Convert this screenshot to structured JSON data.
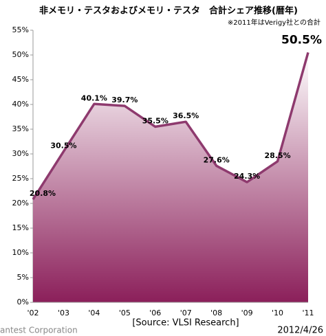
{
  "chart_data": {
    "type": "area",
    "title": "非メモリ・テスタおよびメモリ・テスタ　合計シェア推移(暦年)",
    "annotation": "※2011年はVerigy社との合計",
    "source": "[Source: VLSI Research]",
    "date": "2012/4/26",
    "footer": "antest Corporation",
    "categories": [
      "'02",
      "'03",
      "'04",
      "'05",
      "'06",
      "'07",
      "'08",
      "'09",
      "'10",
      "'11"
    ],
    "values": [
      20.8,
      30.5,
      40.1,
      39.7,
      35.5,
      36.5,
      27.6,
      24.3,
      28.5,
      50.5
    ],
    "value_labels": [
      "20.8%",
      "30.5%",
      "40.1%",
      "39.7%",
      "35.5%",
      "36.5%",
      "27.6%",
      "24.3%",
      "28.5%",
      "50.5%"
    ],
    "color": "#8e3a6e",
    "label_color": "#e8242b",
    "ylim": [
      0,
      55
    ],
    "yticks": [
      {
        "value": 0,
        "label": "0%"
      },
      {
        "value": 5,
        "label": "5%"
      },
      {
        "value": 10,
        "label": "10%"
      },
      {
        "value": 15,
        "label": "15%"
      },
      {
        "value": 20,
        "label": "20%"
      },
      {
        "value": 25,
        "label": "25%"
      },
      {
        "value": 30,
        "label": "30%"
      },
      {
        "value": 35,
        "label": "35%"
      },
      {
        "value": 40,
        "label": "40%"
      },
      {
        "value": 45,
        "label": "45%"
      },
      {
        "value": 50,
        "label": "50%"
      },
      {
        "value": 55,
        "label": "55%"
      }
    ]
  }
}
